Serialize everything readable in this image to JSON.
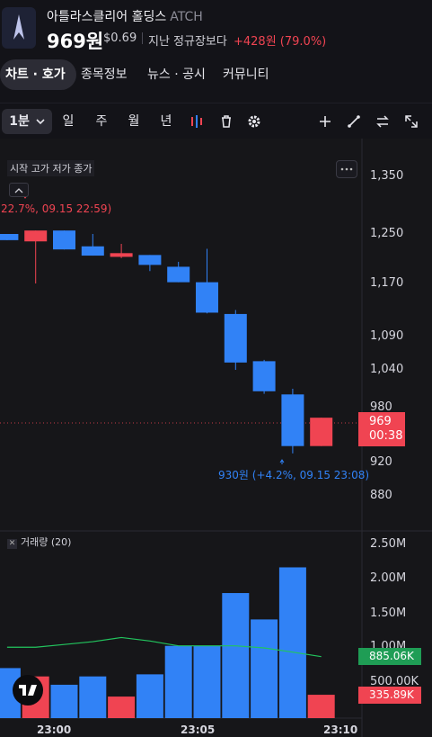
{
  "header": {
    "name": "아틀라스클리어 홀딩스",
    "ticker": "ATCH",
    "price": "969원",
    "usd_price": "$0.69",
    "compare_label": "지난 정규장보다",
    "change": "+428원 (79.0%)"
  },
  "tabs": [
    "차트 · 호가",
    "종목정보",
    "뉴스 · 공시",
    "커뮤니티"
  ],
  "toolbar": {
    "interval": "1분",
    "periods": [
      "일",
      "주",
      "월",
      "년"
    ],
    "icons": [
      "indicator-icon",
      "trash-icon",
      "settings-icon",
      "plus-icon",
      "draw-line-icon",
      "swap-icon",
      "fullscreen-icon"
    ]
  },
  "chart": {
    "ohlc_label": "시작 고가 저가 종가",
    "high_annotation": "22.7%, 09.15 22:59)",
    "low_annotation": "930원 (+4.2%, 09.15 23:08)",
    "current_price": "969",
    "countdown": "00:38",
    "volume_label": "거래량 (20)",
    "volume_ma_tag": "885.06K",
    "volume_current_tag": "335.89K",
    "time_ticks": [
      "23:00",
      "23:05",
      "23:10"
    ]
  },
  "chart_data": {
    "type": "candlestick",
    "price_ticks": [
      "1,350",
      "1,250",
      "1,170",
      "1,090",
      "1,040",
      "980",
      "920",
      "880"
    ],
    "volume_ticks": [
      "2.50M",
      "2.00M",
      "1.50M",
      "1.00M",
      "500.00K"
    ],
    "colors": {
      "up": "#f04452",
      "down": "#3182f6",
      "ma": "#22c55e"
    },
    "candles": [
      {
        "time": "22:58",
        "open": 1250,
        "high": 1250,
        "low": 1240,
        "close": 1240
      },
      {
        "time": "22:59",
        "open": 1238,
        "high": 1256,
        "low": 1170,
        "close": 1256
      },
      {
        "time": "23:00",
        "open": 1256,
        "high": 1256,
        "low": 1225,
        "close": 1225
      },
      {
        "time": "23:01",
        "open": 1230,
        "high": 1250,
        "low": 1215,
        "close": 1215
      },
      {
        "time": "23:02",
        "open": 1213,
        "high": 1234,
        "low": 1211,
        "close": 1219
      },
      {
        "time": "23:03",
        "open": 1216,
        "high": 1216,
        "low": 1190,
        "close": 1200
      },
      {
        "time": "23:04",
        "open": 1197,
        "high": 1205,
        "low": 1172,
        "close": 1172
      },
      {
        "time": "23:05",
        "open": 1172,
        "high": 1226,
        "low": 1125,
        "close": 1126
      },
      {
        "time": "23:06",
        "open": 1124,
        "high": 1130,
        "low": 1040,
        "close": 1051
      },
      {
        "time": "23:07",
        "open": 1053,
        "high": 1055,
        "low": 1002,
        "close": 1006
      },
      {
        "time": "23:08",
        "open": 1001,
        "high": 1010,
        "low": 930,
        "close": 938
      },
      {
        "time": "23:09",
        "open": 938,
        "high": 969,
        "low": 938,
        "close": 969
      }
    ],
    "volumes": [
      720000,
      600000,
      480000,
      600000,
      310000,
      630000,
      1040000,
      1040000,
      1800000,
      1420000,
      2170000,
      335890
    ],
    "volume_ma": [
      1020000,
      1020000,
      1060000,
      1100000,
      1160000,
      1110000,
      1040000,
      1040000,
      1040000,
      1010000,
      950000,
      885060
    ]
  }
}
